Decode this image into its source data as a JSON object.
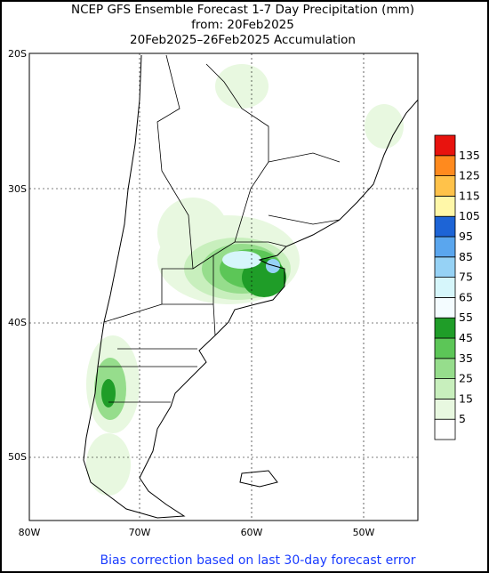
{
  "header": {
    "title": "NCEP GFS Ensemble Forecast 1-7 Day Precipitation (mm)",
    "from": "from: 20Feb2025",
    "period": "20Feb2025–26Feb2025 Accumulation"
  },
  "map": {
    "lat_labels": [
      "20S",
      "30S",
      "40S",
      "50S"
    ],
    "lon_labels": [
      "80W",
      "70W",
      "60W",
      "50W"
    ]
  },
  "legend": {
    "levels": [
      "5",
      "15",
      "25",
      "35",
      "45",
      "55",
      "65",
      "75",
      "85",
      "95",
      "105",
      "115",
      "125",
      "135"
    ],
    "colors": [
      "#ffffff",
      "#e8f8e0",
      "#c8efbd",
      "#96dd8c",
      "#5cc657",
      "#1f9d28",
      "#f4fcff",
      "#d6f6fb",
      "#96d2f5",
      "#5aa6ee",
      "#1d64d6",
      "#fff7a8",
      "#ffc24a",
      "#ff8a1e",
      "#e8130e"
    ]
  },
  "footer": "Bias correction based on last 30-day forecast error"
}
